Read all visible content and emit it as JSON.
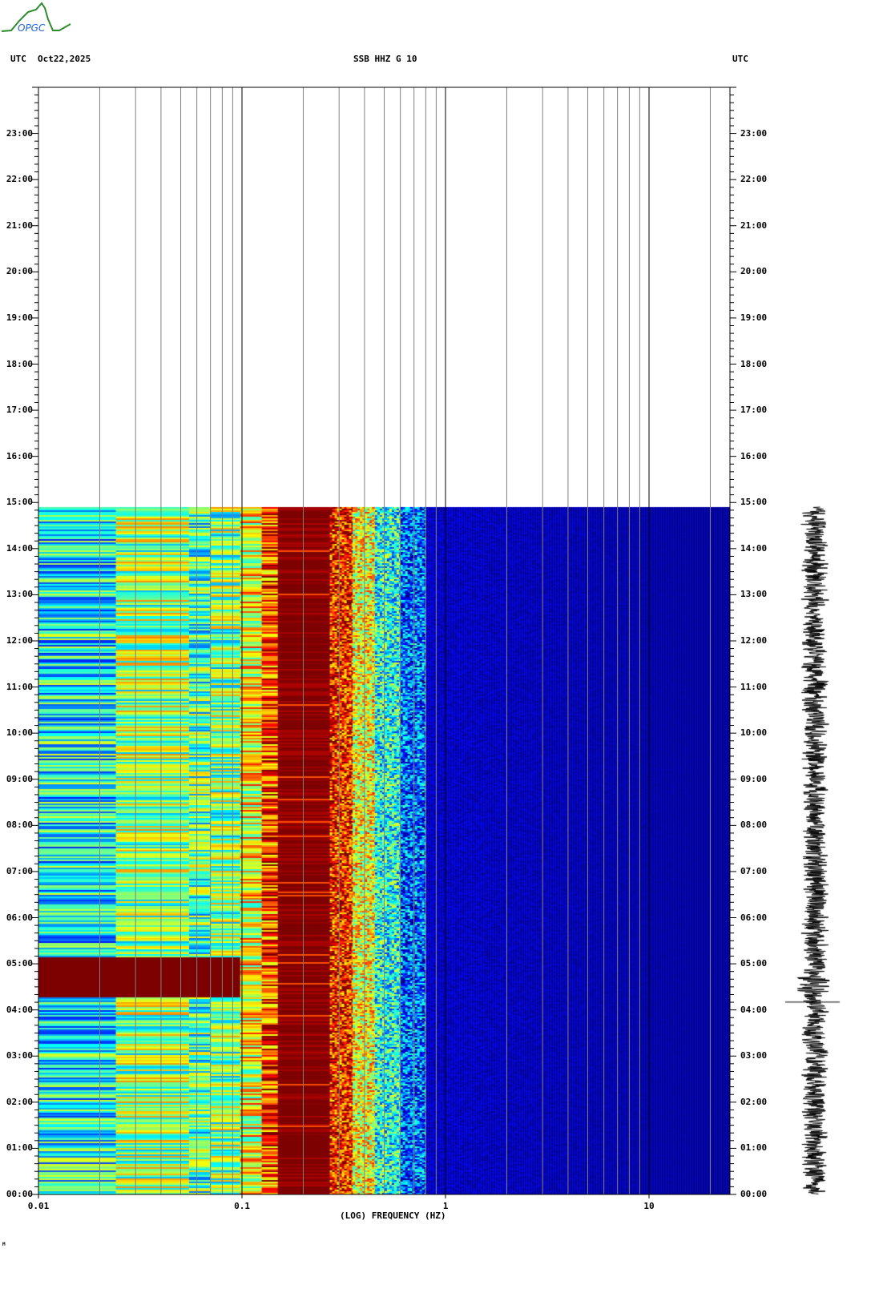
{
  "header": {
    "logo_text": "OPGC",
    "tz_left": "UTC",
    "date": "Oct22,2025",
    "station": "SSB HHZ G 10",
    "tz_right": "UTC"
  },
  "footer_mark": "M",
  "chart_data": {
    "type": "heatmap",
    "title": "SSB HHZ G 10",
    "xlabel": "(LOG) FREQUENCY (HZ)",
    "x_scale": "log",
    "xlim": [
      0.01,
      25
    ],
    "x_ticks": [
      "0.01",
      "0.1",
      "1",
      "10"
    ],
    "y_ticks": [
      "00:00",
      "01:00",
      "02:00",
      "03:00",
      "04:00",
      "05:00",
      "06:00",
      "07:00",
      "08:00",
      "09:00",
      "10:00",
      "11:00",
      "12:00",
      "13:00",
      "14:00",
      "15:00",
      "16:00",
      "17:00",
      "18:00",
      "19:00",
      "20:00",
      "21:00",
      "22:00",
      "23:00"
    ],
    "ylim_hours": [
      0,
      24
    ],
    "data_end_hour": 14.9,
    "grid": true,
    "colormap": "jet",
    "colors": {
      "low": "#00008c",
      "high": "#800000",
      "grid": "#808080"
    },
    "band_levels": [
      {
        "f_min": 0.01,
        "f_max": 0.024,
        "level": 0.38
      },
      {
        "f_min": 0.024,
        "f_max": 0.055,
        "level": 0.52
      },
      {
        "f_min": 0.055,
        "f_max": 0.07,
        "level": 0.45
      },
      {
        "f_min": 0.07,
        "f_max": 0.098,
        "level": 0.5
      },
      {
        "f_min": 0.098,
        "f_max": 0.125,
        "level": 0.62
      },
      {
        "f_min": 0.125,
        "f_max": 0.15,
        "level": 0.8
      },
      {
        "f_min": 0.15,
        "f_max": 0.27,
        "level": 1.0
      },
      {
        "f_min": 0.27,
        "f_max": 0.35,
        "level": 0.85
      },
      {
        "f_min": 0.35,
        "f_max": 0.45,
        "level": 0.62
      },
      {
        "f_min": 0.45,
        "f_max": 0.6,
        "level": 0.4
      },
      {
        "f_min": 0.6,
        "f_max": 0.8,
        "level": 0.22
      },
      {
        "f_min": 0.8,
        "f_max": 25,
        "level": 0.05
      }
    ],
    "events": [
      {
        "start_hour": 4.3,
        "end_hour": 5.15,
        "f_max": 0.1,
        "level": 1.0
      },
      {
        "start_hour": 4.17,
        "end_hour": 4.2,
        "f_max": 1.3,
        "level": 0.55
      },
      {
        "start_hour": 10.05,
        "end_hour": 10.07,
        "f_max": 5,
        "level": 0.3
      }
    ]
  }
}
